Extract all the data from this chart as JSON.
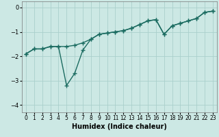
{
  "xlabel": "Humidex (Indice chaleur)",
  "ylabel": "",
  "background_color": "#cce8e4",
  "grid_color": "#aacfcc",
  "line_color": "#1a6b60",
  "xlim": [
    -0.5,
    23.5
  ],
  "ylim": [
    -4.3,
    0.25
  ],
  "xticks": [
    0,
    1,
    2,
    3,
    4,
    5,
    6,
    7,
    8,
    9,
    10,
    11,
    12,
    13,
    14,
    15,
    16,
    17,
    18,
    19,
    20,
    21,
    22,
    23
  ],
  "yticks": [
    0,
    -1,
    -2,
    -3,
    -4
  ],
  "line1_x": [
    0,
    1,
    2,
    3,
    4,
    5,
    6,
    7,
    8,
    9,
    10,
    11,
    12,
    13,
    14,
    15,
    16,
    17,
    18,
    19,
    20,
    21,
    22,
    23
  ],
  "line1_y": [
    -1.9,
    -1.7,
    -1.7,
    -1.6,
    -1.6,
    -3.2,
    -2.7,
    -1.75,
    -1.3,
    -1.1,
    -1.05,
    -1.0,
    -0.95,
    -0.85,
    -0.7,
    -0.55,
    -0.5,
    -1.1,
    -0.75,
    -0.65,
    -0.55,
    -0.45,
    -0.2,
    -0.15
  ],
  "line2_x": [
    0,
    1,
    2,
    3,
    4,
    5,
    6,
    7,
    8,
    9,
    10,
    11,
    12,
    13,
    14,
    15,
    16,
    17,
    18,
    19,
    20,
    21,
    22,
    23
  ],
  "line2_y": [
    -1.9,
    -1.7,
    -1.7,
    -1.6,
    -1.6,
    -1.6,
    -1.55,
    -1.45,
    -1.3,
    -1.1,
    -1.05,
    -1.0,
    -0.95,
    -0.85,
    -0.7,
    -0.55,
    -0.5,
    -1.1,
    -0.75,
    -0.65,
    -0.55,
    -0.45,
    -0.2,
    -0.15
  ],
  "marker": "+",
  "markersize": 4,
  "linewidth": 1.0,
  "label_fontsize": 7,
  "tick_fontsize": 5.5
}
